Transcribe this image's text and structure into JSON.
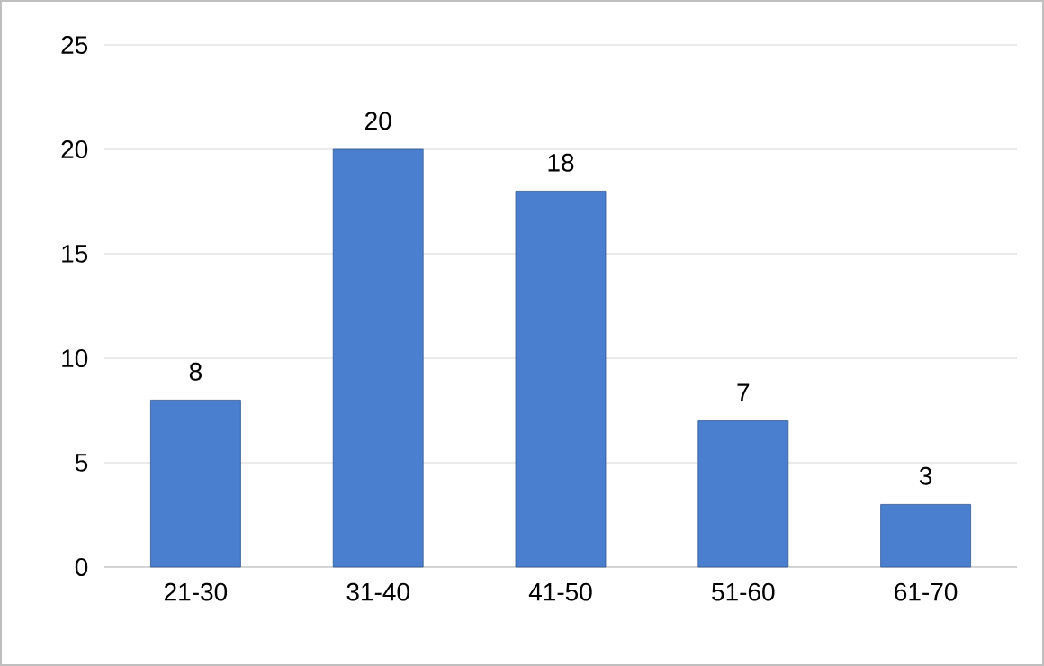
{
  "chart_data": {
    "type": "bar",
    "categories": [
      "21-30",
      "31-40",
      "41-50",
      "51-60",
      "61-70"
    ],
    "values": [
      8,
      20,
      18,
      7,
      3
    ],
    "color": "#4a7fd0",
    "ylim": [
      0,
      25
    ],
    "yticks": [
      0,
      5,
      10,
      15,
      20,
      25
    ],
    "grid": "y",
    "data_labels": true
  }
}
